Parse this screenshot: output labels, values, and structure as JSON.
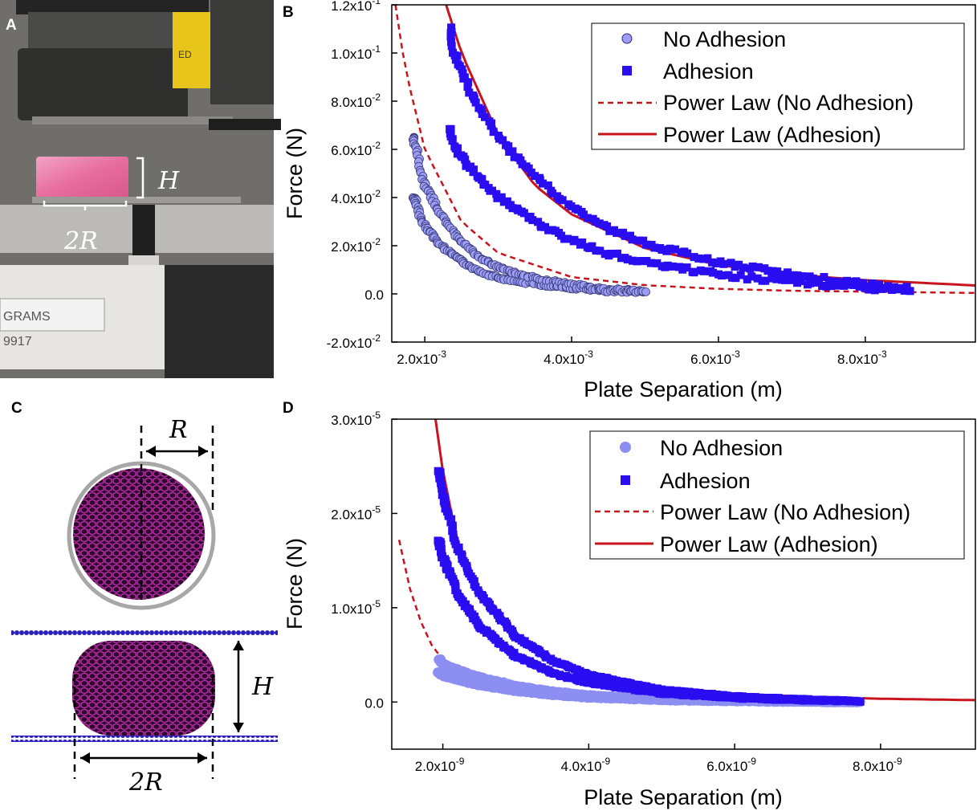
{
  "panels": {
    "a": {
      "letter": "A",
      "label_H": "H",
      "label_2R": "2R",
      "scale_text_1": "GRAMS",
      "scale_text_2": "9917",
      "sign_text": "ED"
    },
    "b": {
      "letter": "B"
    },
    "c": {
      "letter": "C",
      "label_R": "R",
      "label_H": "H",
      "label_2R": "2R"
    },
    "d": {
      "letter": "D"
    }
  },
  "colors": {
    "no_adhesion_b": "#9c9ef5",
    "adhesion": "#2a0df0",
    "no_adhesion_d": "#8c8ef2",
    "power_law": "#c8141e",
    "mesh": "#b0279e"
  },
  "chart_data": [
    {
      "type": "scatter",
      "panel": "B",
      "xlabel": "Plate Separation (m)",
      "ylabel": "Force (N)",
      "xlim": [
        0.00155,
        0.0095
      ],
      "ylim": [
        -0.02,
        0.12
      ],
      "x_ticks": [
        {
          "value": 0.002,
          "base": "2.0x10",
          "exp": "-3"
        },
        {
          "value": 0.004,
          "base": "4.0x10",
          "exp": "-3"
        },
        {
          "value": 0.006,
          "base": "6.0x10",
          "exp": "-3"
        },
        {
          "value": 0.008,
          "base": "8.0x10",
          "exp": "-3"
        }
      ],
      "y_ticks": [
        {
          "value": -0.02,
          "base": "-2.0x10",
          "exp": "-2"
        },
        {
          "value": 0.0,
          "base": "0.0",
          "exp": ""
        },
        {
          "value": 0.02,
          "base": "2.0x10",
          "exp": "-2"
        },
        {
          "value": 0.04,
          "base": "4.0x10",
          "exp": "-2"
        },
        {
          "value": 0.06,
          "base": "6.0x10",
          "exp": "-2"
        },
        {
          "value": 0.08,
          "base": "8.0x10",
          "exp": "-2"
        },
        {
          "value": 0.1,
          "base": "1.0x10",
          "exp": "-1"
        },
        {
          "value": 0.12,
          "base": "1.2x10",
          "exp": "-1"
        }
      ],
      "legend_position": "top-right",
      "legend": [
        "No Adhesion",
        "Adhesion",
        "Power Law (No Adhesion)",
        "Power Law (Adhesion)"
      ],
      "series": [
        {
          "name": "No Adhesion",
          "marker": "circle",
          "x": [
            0.00185,
            0.0019,
            0.00195,
            0.002,
            0.0021,
            0.0022,
            0.0024,
            0.0026,
            0.0028,
            0.003,
            0.0033,
            0.0036,
            0.004,
            0.0045,
            0.005
          ],
          "y": [
            0.065,
            0.058,
            0.05,
            0.045,
            0.04,
            0.034,
            0.025,
            0.019,
            0.014,
            0.011,
            0.008,
            0.006,
            0.004,
            0.002,
            0.001
          ]
        },
        {
          "name": "Adhesion",
          "marker": "square",
          "x": [
            0.00235,
            0.0024,
            0.0025,
            0.0026,
            0.0028,
            0.003,
            0.0033,
            0.0036,
            0.004,
            0.0045,
            0.005,
            0.006,
            0.007,
            0.008,
            0.0086
          ],
          "y": [
            0.11,
            0.1,
            0.092,
            0.085,
            0.075,
            0.065,
            0.055,
            0.046,
            0.036,
            0.027,
            0.021,
            0.013,
            0.008,
            0.004,
            0.002
          ]
        },
        {
          "name": "Power Law (No Adhesion)",
          "style": "dashed",
          "x": [
            0.0016,
            0.0017,
            0.0018,
            0.002,
            0.0025,
            0.003,
            0.004,
            0.005,
            0.006,
            0.007,
            0.0095
          ],
          "y": [
            0.12,
            0.1,
            0.085,
            0.06,
            0.03,
            0.017,
            0.007,
            0.0036,
            0.0021,
            0.0013,
            0.0004
          ]
        },
        {
          "name": "Power Law (Adhesion)",
          "style": "solid",
          "x": [
            0.00229,
            0.0025,
            0.003,
            0.0035,
            0.004,
            0.005,
            0.006,
            0.007,
            0.008,
            0.0095
          ],
          "y": [
            0.12,
            0.1,
            0.066,
            0.045,
            0.033,
            0.019,
            0.012,
            0.008,
            0.0057,
            0.0035
          ]
        }
      ]
    },
    {
      "type": "scatter",
      "panel": "D",
      "xlabel": "Plate Separation (m)",
      "ylabel": "Force (N)",
      "xlim": [
        1.3e-09,
        9.3e-09
      ],
      "ylim": [
        -5e-06,
        3e-05
      ],
      "x_ticks": [
        {
          "value": 2e-09,
          "base": "2.0x10",
          "exp": "-9"
        },
        {
          "value": 4e-09,
          "base": "4.0x10",
          "exp": "-9"
        },
        {
          "value": 6e-09,
          "base": "6.0x10",
          "exp": "-9"
        },
        {
          "value": 8e-09,
          "base": "8.0x10",
          "exp": "-9"
        }
      ],
      "y_ticks": [
        {
          "value": 0,
          "base": "0.0",
          "exp": ""
        },
        {
          "value": 1e-05,
          "base": "1.0x10",
          "exp": "-5"
        },
        {
          "value": 2e-05,
          "base": "2.0x10",
          "exp": "-5"
        },
        {
          "value": 3e-05,
          "base": "3.0x10",
          "exp": "-5"
        }
      ],
      "legend_position": "top-right",
      "legend": [
        "No Adhesion",
        "Adhesion",
        "Power Law (No Adhesion)",
        "Power Law (Adhesion)"
      ],
      "series": [
        {
          "name": "No Adhesion",
          "marker": "circle",
          "x": [
            1.95e-09,
            2e-09,
            2.2e-09,
            2.5e-09,
            3e-09,
            3.5e-09,
            4e-09,
            5e-09,
            6e-09,
            7e-09,
            7.7e-09
          ],
          "y": [
            4.5e-06,
            4e-06,
            3.4e-06,
            2.6e-06,
            1.7e-06,
            1.1e-06,
            7e-07,
            3e-07,
            1.5e-07,
            5e-08,
            0
          ]
        },
        {
          "name": "Adhesion",
          "marker": "square",
          "x": [
            1.95e-09,
            2e-09,
            2.2e-09,
            2.5e-09,
            3e-09,
            3.5e-09,
            4e-09,
            5e-09,
            6e-09,
            7e-09,
            7.7e-09
          ],
          "y": [
            2.45e-05,
            2.2e-05,
            1.65e-05,
            1.15e-05,
            7e-06,
            4.4e-06,
            2.9e-06,
            1.3e-06,
            6e-07,
            2.5e-07,
            1e-07
          ]
        },
        {
          "name": "Power Law (No Adhesion)",
          "style": "dashed",
          "x": [
            1.4e-09,
            1.55e-09,
            1.7e-09,
            1.85e-09,
            2e-09
          ],
          "y": [
            1.72e-05,
            1.2e-05,
            8.5e-06,
            6e-06,
            4.5e-06
          ]
        },
        {
          "name": "Power Law (Adhesion)",
          "style": "solid",
          "x": [
            1.9e-09,
            2e-09,
            2.2e-09,
            2.5e-09,
            3e-09,
            3.5e-09,
            4e-09,
            5e-09,
            6e-09,
            7e-09,
            8e-09,
            9.3e-09
          ],
          "y": [
            3e-05,
            2.45e-05,
            1.7e-05,
            1.12e-05,
            6.7e-06,
            4.4e-06,
            3e-06,
            1.6e-06,
            9e-07,
            5.5e-07,
            3.5e-07,
            2e-07
          ]
        }
      ]
    }
  ]
}
